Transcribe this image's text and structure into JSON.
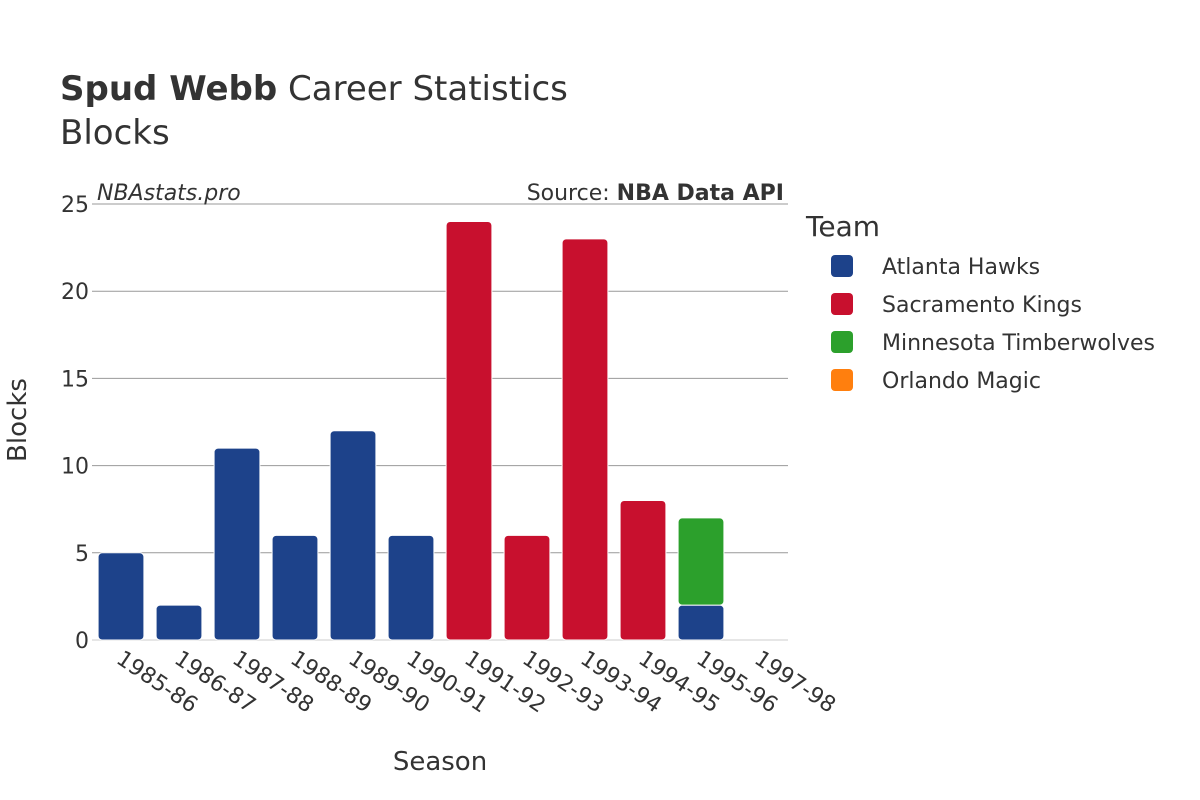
{
  "title": {
    "bold": "Spud Webb",
    "rest": " Career Statistics",
    "subtitle": "Blocks"
  },
  "watermark": "NBAstats.pro",
  "source": {
    "label": "Source: ",
    "bold": "NBA Data API"
  },
  "legend": {
    "title": "Team",
    "items": [
      {
        "name": "Atlanta Hawks",
        "color": "#1d428a"
      },
      {
        "name": "Sacramento Kings",
        "color": "#c8102e"
      },
      {
        "name": "Minnesota Timberwolves",
        "color": "#2ca02c"
      },
      {
        "name": "Orlando Magic",
        "color": "#ff7f0e"
      }
    ]
  },
  "chart_data": {
    "type": "bar",
    "stacked": true,
    "title": "Spud Webb Career Statistics",
    "subtitle": "Blocks",
    "xlabel": "Season",
    "ylabel": "Blocks",
    "ylim": [
      0,
      25
    ],
    "yticks": [
      0,
      5,
      10,
      15,
      20,
      25
    ],
    "grid": true,
    "legend_position": "right",
    "categories": [
      "1985-86",
      "1986-87",
      "1987-88",
      "1988-89",
      "1989-90",
      "1990-91",
      "1991-92",
      "1992-93",
      "1993-94",
      "1994-95",
      "1995-96",
      "1997-98"
    ],
    "series": [
      {
        "name": "Atlanta Hawks",
        "color": "#1d428a",
        "values": [
          5,
          2,
          11,
          6,
          12,
          6,
          0,
          0,
          0,
          0,
          2,
          0
        ]
      },
      {
        "name": "Sacramento Kings",
        "color": "#c8102e",
        "values": [
          0,
          0,
          0,
          0,
          0,
          0,
          24,
          6,
          23,
          8,
          0,
          0
        ]
      },
      {
        "name": "Minnesota Timberwolves",
        "color": "#2ca02c",
        "values": [
          0,
          0,
          0,
          0,
          0,
          0,
          0,
          0,
          0,
          0,
          5,
          0
        ]
      },
      {
        "name": "Orlando Magic",
        "color": "#ff7f0e",
        "values": [
          0,
          0,
          0,
          0,
          0,
          0,
          0,
          0,
          0,
          0,
          0,
          0
        ]
      }
    ]
  }
}
